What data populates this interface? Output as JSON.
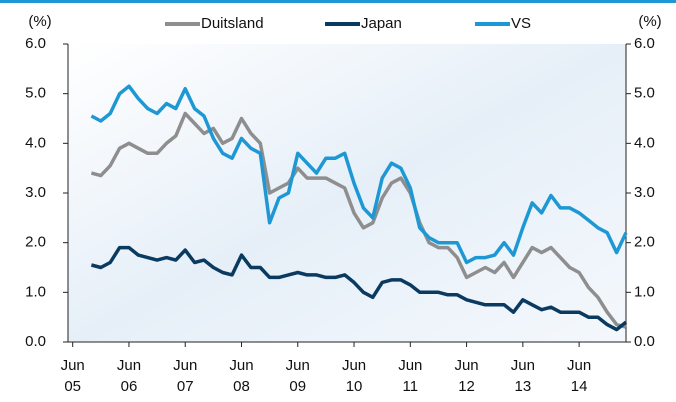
{
  "chart_data": {
    "type": "line",
    "y_label": "(%)",
    "y2_label": "(%)",
    "xlim": [
      "2005-05",
      "2015-04"
    ],
    "xticks": [
      {
        "value": "2005-06",
        "label": "Jun\n05"
      },
      {
        "value": "2006-06",
        "label": "Jun\n06"
      },
      {
        "value": "2007-06",
        "label": "Jun\n07"
      },
      {
        "value": "2008-06",
        "label": "Jun\n08"
      },
      {
        "value": "2009-06",
        "label": "Jun\n09"
      },
      {
        "value": "2010-06",
        "label": "Jun\n10"
      },
      {
        "value": "2011-06",
        "label": "Jun\n11"
      },
      {
        "value": "2012-06",
        "label": "Jun\n12"
      },
      {
        "value": "2013-06",
        "label": "Jun\n13"
      },
      {
        "value": "2014-06",
        "label": "Jun\n14"
      }
    ],
    "ylim": [
      0,
      6
    ],
    "yticks": [
      {
        "value": 0,
        "label": "0.0"
      },
      {
        "value": 1,
        "label": "1.0"
      },
      {
        "value": 2,
        "label": "2.0"
      },
      {
        "value": 3,
        "label": "3.0"
      },
      {
        "value": 4,
        "label": "4.0"
      },
      {
        "value": 5,
        "label": "5.0"
      },
      {
        "value": 6,
        "label": "6.0"
      }
    ],
    "y2lim": [
      0,
      6
    ],
    "y2ticks": [
      {
        "value": 0,
        "label": "0.0"
      },
      {
        "value": 1,
        "label": "1.0"
      },
      {
        "value": 2,
        "label": "2.0"
      },
      {
        "value": 3,
        "label": "3.0"
      },
      {
        "value": 4,
        "label": "4.0"
      },
      {
        "value": 5,
        "label": "5.0"
      },
      {
        "value": 6,
        "label": "6.0"
      }
    ],
    "x": [
      "2005-10",
      "2005-12",
      "2006-02",
      "2006-04",
      "2006-06",
      "2006-08",
      "2006-10",
      "2006-12",
      "2007-02",
      "2007-04",
      "2007-06",
      "2007-08",
      "2007-10",
      "2007-12",
      "2008-02",
      "2008-04",
      "2008-06",
      "2008-08",
      "2008-10",
      "2008-12",
      "2009-02",
      "2009-04",
      "2009-06",
      "2009-08",
      "2009-10",
      "2009-12",
      "2010-02",
      "2010-04",
      "2010-06",
      "2010-08",
      "2010-10",
      "2010-12",
      "2011-02",
      "2011-04",
      "2011-06",
      "2011-08",
      "2011-10",
      "2011-12",
      "2012-02",
      "2012-04",
      "2012-06",
      "2012-08",
      "2012-10",
      "2012-12",
      "2013-02",
      "2013-04",
      "2013-06",
      "2013-08",
      "2013-10",
      "2013-12",
      "2014-02",
      "2014-04",
      "2014-06",
      "2014-08",
      "2014-10",
      "2014-12",
      "2015-02",
      "2015-04"
    ],
    "series": [
      {
        "name": "Duitsland",
        "color": "#8e8e8e",
        "values": [
          3.4,
          3.35,
          3.55,
          3.9,
          4.0,
          3.9,
          3.8,
          3.8,
          4.0,
          4.15,
          4.6,
          4.4,
          4.2,
          4.3,
          4.0,
          4.1,
          4.5,
          4.2,
          4.0,
          3.0,
          3.1,
          3.2,
          3.5,
          3.3,
          3.3,
          3.3,
          3.2,
          3.1,
          2.6,
          2.3,
          2.4,
          2.9,
          3.2,
          3.3,
          3.0,
          2.4,
          2.0,
          1.9,
          1.9,
          1.7,
          1.3,
          1.4,
          1.5,
          1.4,
          1.6,
          1.3,
          1.6,
          1.9,
          1.8,
          1.9,
          1.7,
          1.5,
          1.4,
          1.1,
          0.9,
          0.6,
          0.35,
          0.3
        ]
      },
      {
        "name": "Japan",
        "color": "#0b3a61",
        "values": [
          1.55,
          1.5,
          1.6,
          1.9,
          1.9,
          1.75,
          1.7,
          1.65,
          1.7,
          1.65,
          1.85,
          1.6,
          1.65,
          1.5,
          1.4,
          1.35,
          1.75,
          1.5,
          1.5,
          1.3,
          1.3,
          1.35,
          1.4,
          1.35,
          1.35,
          1.3,
          1.3,
          1.35,
          1.2,
          1.0,
          0.9,
          1.2,
          1.25,
          1.25,
          1.15,
          1.0,
          1.0,
          1.0,
          0.95,
          0.95,
          0.85,
          0.8,
          0.75,
          0.75,
          0.75,
          0.6,
          0.85,
          0.75,
          0.65,
          0.7,
          0.6,
          0.6,
          0.6,
          0.5,
          0.5,
          0.35,
          0.25,
          0.4
        ]
      },
      {
        "name": "VS",
        "color": "#1e98d4",
        "values": [
          4.55,
          4.45,
          4.6,
          5.0,
          5.15,
          4.9,
          4.7,
          4.6,
          4.8,
          4.7,
          5.1,
          4.7,
          4.55,
          4.1,
          3.8,
          3.7,
          4.1,
          3.9,
          3.8,
          2.4,
          2.9,
          3.0,
          3.8,
          3.6,
          3.4,
          3.7,
          3.7,
          3.8,
          3.2,
          2.7,
          2.5,
          3.3,
          3.6,
          3.5,
          3.1,
          2.3,
          2.1,
          2.0,
          2.0,
          2.0,
          1.6,
          1.7,
          1.7,
          1.75,
          2.0,
          1.75,
          2.3,
          2.8,
          2.6,
          2.95,
          2.7,
          2.7,
          2.6,
          2.45,
          2.3,
          2.2,
          1.8,
          2.2
        ]
      }
    ]
  }
}
